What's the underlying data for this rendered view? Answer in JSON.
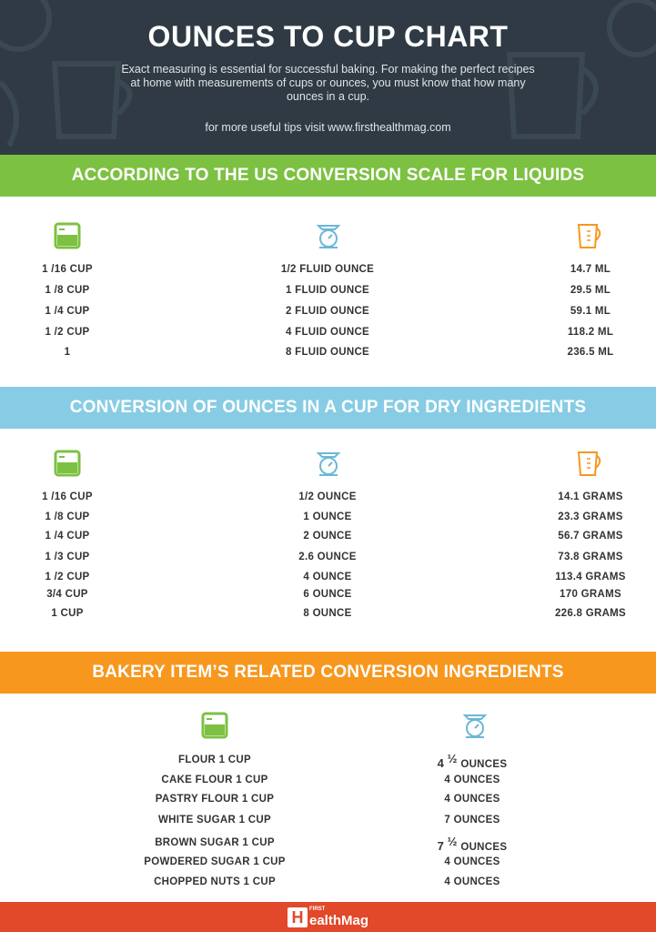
{
  "header": {
    "title": "OUNCES TO CUP CHART",
    "intro": "Exact measuring is essential for successful baking. For making the perfect recipes at home with measurements of cups or ounces, you must know that how many ounces in a cup.",
    "tips": "for more useful tips visit www.firsthealthmag.com"
  },
  "colors": {
    "header_bg": "#2f3a44",
    "green": "#7dc142",
    "blue": "#87cce4",
    "orange": "#f7971e",
    "red": "#e2482a"
  },
  "icons": {
    "cup": "measuring-cup-icon",
    "scale": "kitchen-scale-icon",
    "jug": "measuring-jug-icon"
  },
  "liquids": {
    "heading": "ACCORDING TO THE US CONVERSION SCALE FOR LIQUIDS",
    "rows": [
      {
        "cup": "1 /16 CUP",
        "oz": "1/2 FLUID OUNCE",
        "metric": "14.7 ML"
      },
      {
        "cup": "1 /8 CUP",
        "oz": "1 FLUID OUNCE",
        "metric": "29.5 ML"
      },
      {
        "cup": "1 /4 CUP",
        "oz": "2 FLUID OUNCE",
        "metric": "59.1 ML"
      },
      {
        "cup": "1 /2 CUP",
        "oz": "4 FLUID OUNCE",
        "metric": "118.2 ML"
      },
      {
        "cup": "1",
        "oz": "8 FLUID OUNCE",
        "metric": "236.5 ML"
      }
    ]
  },
  "dry": {
    "heading": "CONVERSION OF OUNCES IN A CUP FOR DRY INGREDIENTS",
    "rows": [
      {
        "cup": "1 /16 CUP",
        "oz": "1/2 OUNCE",
        "metric": "14.1 GRAMS"
      },
      {
        "cup": "1 /8 CUP",
        "oz": "1 OUNCE",
        "metric": "23.3 GRAMS"
      },
      {
        "cup": "1 /4 CUP",
        "oz": "2 OUNCE",
        "metric": "56.7 GRAMS"
      },
      {
        "cup": "1 /3 CUP",
        "oz": "2.6 OUNCE",
        "metric": "73.8 GRAMS"
      },
      {
        "cup": "1 /2 CUP",
        "oz": "4 OUNCE",
        "metric": "113.4 GRAMS"
      },
      {
        "cup": "3/4 CUP",
        "oz": "6 OUNCE",
        "metric": "170 GRAMS"
      },
      {
        "cup": "1 CUP",
        "oz": "8 OUNCE",
        "metric": "226.8 GRAMS"
      }
    ]
  },
  "bakery": {
    "heading": "BAKERY ITEM’S RELATED CONVERSION INGREDIENTS",
    "rows": [
      {
        "item": "FLOUR 1 CUP",
        "num": "4",
        "frac": "½",
        "unit": "OUNCES"
      },
      {
        "item": "CAKE FLOUR 1 CUP",
        "num": "4",
        "frac": "",
        "unit": "OUNCES"
      },
      {
        "item": "PASTRY FLOUR 1 CUP",
        "num": "4",
        "frac": "",
        "unit": "OUNCES"
      },
      {
        "item": "WHITE SUGAR 1 CUP",
        "num": "7",
        "frac": "",
        "unit": "OUNCES"
      },
      {
        "item": "BROWN SUGAR 1 CUP",
        "num": "7",
        "frac": "½",
        "unit": "OUNCES"
      },
      {
        "item": "POWDERED SUGAR 1 CUP",
        "num": "4",
        "frac": "",
        "unit": "OUNCES"
      },
      {
        "item": "CHOPPED NUTS 1 CUP",
        "num": "4",
        "frac": "",
        "unit": "OUNCES"
      }
    ]
  },
  "footer": {
    "logo_mark": "H",
    "logo_first": "FIRST",
    "logo_word": "ealthMag"
  }
}
